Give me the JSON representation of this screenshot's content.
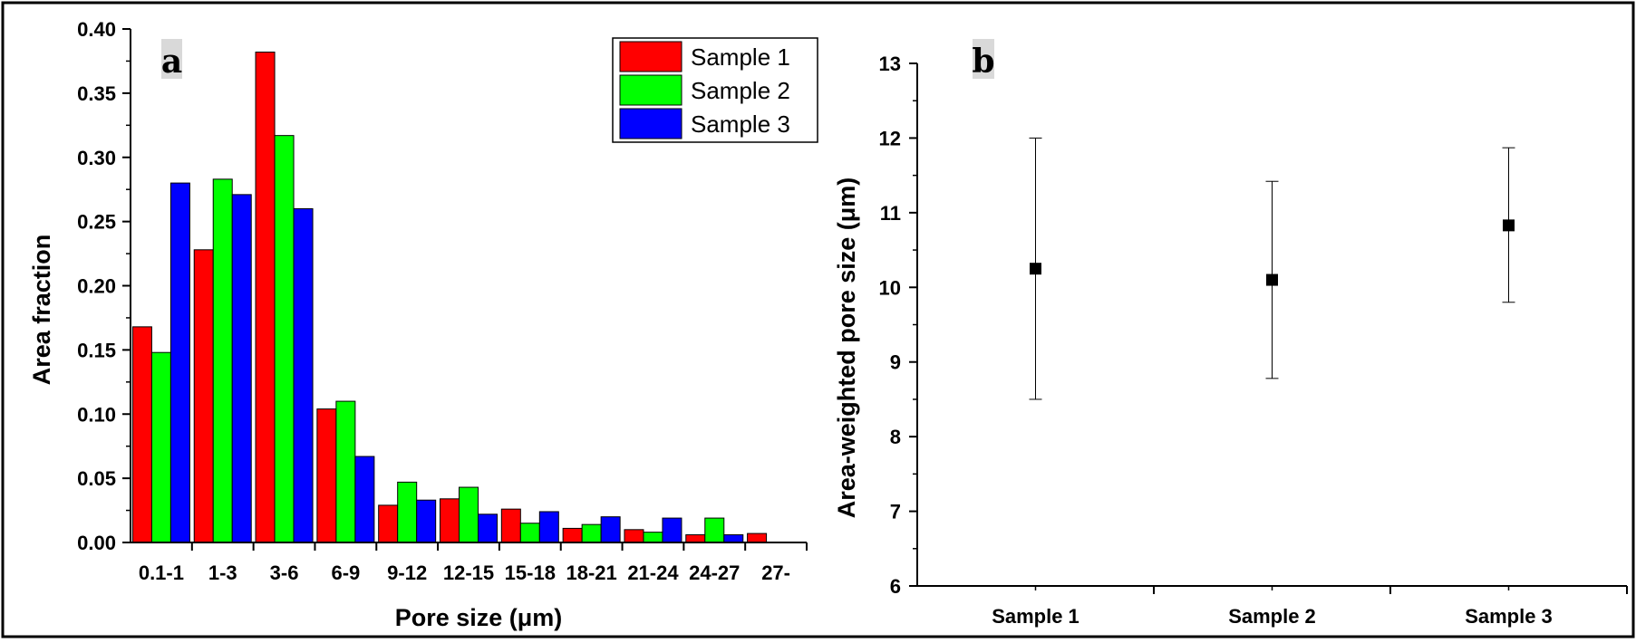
{
  "chart_data": [
    {
      "type": "bar",
      "panel_label": "a",
      "categories": [
        "0.1-1",
        "1-3",
        "3-6",
        "6-9",
        "9-12",
        "12-15",
        "15-18",
        "18-21",
        "21-24",
        "24-27",
        "27-"
      ],
      "series": [
        {
          "name": "Sample 1",
          "color": "#ff0000",
          "values": [
            0.168,
            0.228,
            0.382,
            0.104,
            0.029,
            0.034,
            0.026,
            0.011,
            0.01,
            0.006,
            0.007
          ]
        },
        {
          "name": "Sample 2",
          "color": "#00ff00",
          "values": [
            0.148,
            0.283,
            0.317,
            0.11,
            0.047,
            0.043,
            0.015,
            0.014,
            0.008,
            0.019,
            null
          ]
        },
        {
          "name": "Sample 3",
          "color": "#0000ff",
          "values": [
            0.28,
            0.271,
            0.26,
            0.067,
            0.033,
            0.022,
            0.024,
            0.02,
            0.019,
            0.006,
            null
          ]
        }
      ],
      "xlabel": "Pore size (μm)",
      "ylabel": "Area fraction",
      "ylim": [
        0,
        0.4
      ],
      "yticks": [
        "0.00",
        "0.05",
        "0.10",
        "0.15",
        "0.20",
        "0.25",
        "0.30",
        "0.35",
        "0.40"
      ],
      "legend_position": "top-right"
    },
    {
      "type": "scatter",
      "panel_label": "b",
      "categories": [
        "Sample 1",
        "Sample 2",
        "Sample 3"
      ],
      "series": [
        {
          "name": "Area-weighted pore size",
          "color": "#000000",
          "values": [
            10.25,
            10.1,
            10.83
          ],
          "error_low": [
            8.5,
            8.78,
            9.8
          ],
          "error_high": [
            12.0,
            11.42,
            11.87
          ]
        }
      ],
      "xlabel": "",
      "ylabel": "Area-weighted pore size (μm)",
      "ylim": [
        6,
        13
      ],
      "yticks": [
        "6",
        "7",
        "8",
        "9",
        "10",
        "11",
        "12",
        "13"
      ]
    }
  ]
}
